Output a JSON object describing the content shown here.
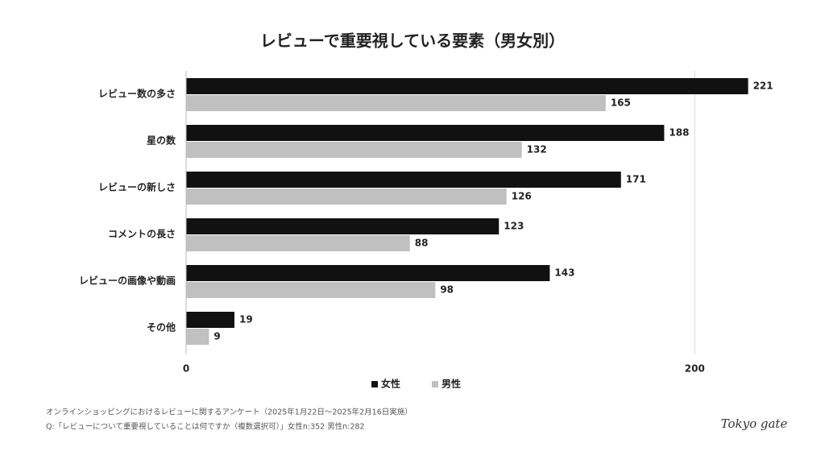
{
  "chart_data": {
    "type": "bar",
    "orientation": "horizontal",
    "title": "レビューで重要視している要素（男女別）",
    "categories": [
      "レビュー数の多さ",
      "星の数",
      "レビューの新しさ",
      "コメントの長さ",
      "レビューの画像や動画",
      "その他"
    ],
    "series": [
      {
        "name": "女性",
        "color": "#111111",
        "values": [
          221,
          188,
          171,
          123,
          143,
          19
        ]
      },
      {
        "name": "男性",
        "color": "#c0c0c0",
        "values": [
          165,
          132,
          126,
          88,
          98,
          9
        ]
      }
    ],
    "xlim": [
      0,
      230
    ],
    "xticks": [
      0,
      200
    ],
    "grid": true,
    "legend": "bottom",
    "source": "オンラインショッピングにおけるレビューに関するアンケート（2025年1月22日〜2025年2月16日実施）",
    "question": "Q:「レビューについて重要視していることは何ですか（複数選択可）」女性n:352 男性n:282",
    "brand": "Tokyo gate"
  }
}
